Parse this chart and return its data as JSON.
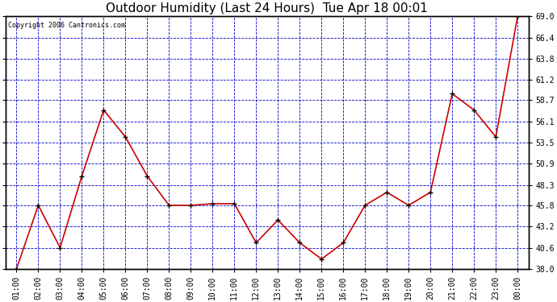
{
  "title": "Outdoor Humidity (Last 24 Hours)  Tue Apr 18 00:01",
  "copyright": "Copyright 2006 Cantronics.com",
  "x_labels": [
    "01:00",
    "02:00",
    "03:00",
    "04:00",
    "05:00",
    "06:00",
    "07:00",
    "08:00",
    "09:00",
    "10:00",
    "11:00",
    "12:00",
    "13:00",
    "14:00",
    "15:00",
    "16:00",
    "17:00",
    "18:00",
    "19:00",
    "20:00",
    "21:00",
    "22:00",
    "23:00",
    "00:00"
  ],
  "data_x": [
    0,
    1,
    2,
    3,
    4,
    5,
    6,
    7,
    8,
    9,
    10,
    11,
    12,
    13,
    14,
    15,
    16,
    17,
    18,
    19,
    20,
    21,
    22,
    23
  ],
  "data_y": [
    38.0,
    45.8,
    40.6,
    49.4,
    57.5,
    54.2,
    49.4,
    45.8,
    45.8,
    46.0,
    46.0,
    41.2,
    44.0,
    41.2,
    39.2,
    41.2,
    45.8,
    47.4,
    45.8,
    47.4,
    59.5,
    57.5,
    54.2,
    69.0
  ],
  "ylim": [
    38.0,
    69.0
  ],
  "yticks": [
    38.0,
    40.6,
    43.2,
    45.8,
    48.3,
    50.9,
    53.5,
    56.1,
    58.7,
    61.2,
    63.8,
    66.4,
    69.0
  ],
  "ytick_labels": [
    "38.0",
    "40.6",
    "43.2",
    "45.8",
    "48.3",
    "50.9",
    "53.5",
    "56.1",
    "58.7",
    "61.2",
    "63.8",
    "66.4",
    "69.0"
  ],
  "line_color": "#cc0000",
  "marker_color": "#000000",
  "bg_color": "#ffffff",
  "grid_color": "#0000cc",
  "title_color": "#000000",
  "border_color": "#000000",
  "title_fontsize": 11,
  "tick_fontsize": 7,
  "copyright_fontsize": 6
}
